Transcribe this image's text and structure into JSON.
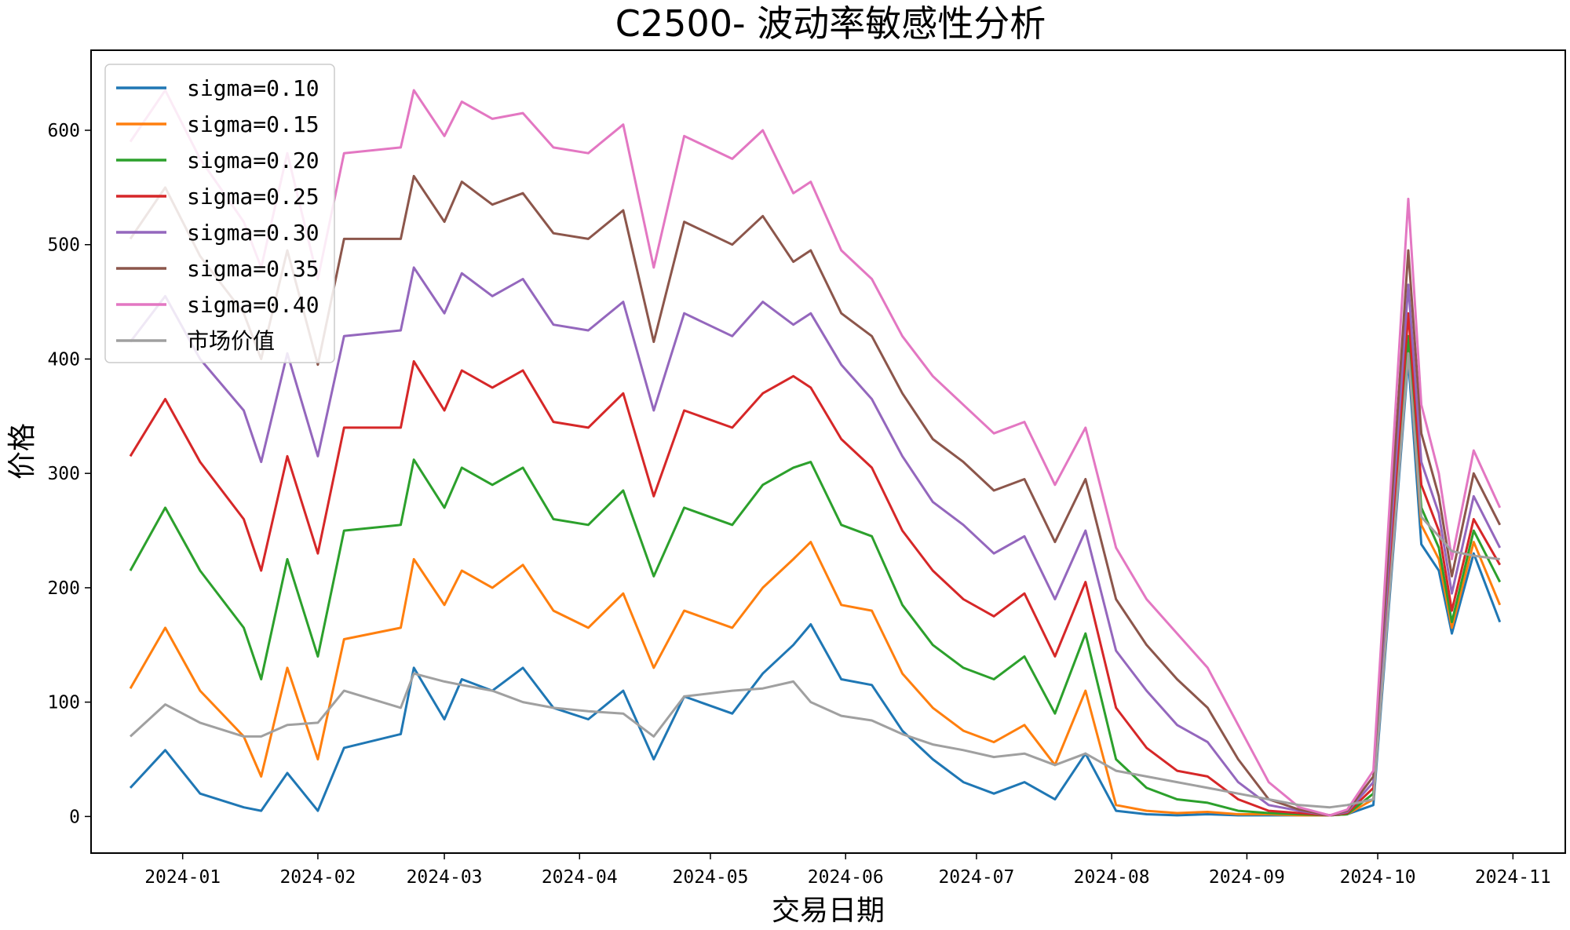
{
  "chart_data": {
    "type": "line",
    "title": "C2500- 波动率敏感性分析",
    "xlabel": "交易日期",
    "ylabel": "价格",
    "x_ticks": [
      "2024-01",
      "2024-02",
      "2024-03",
      "2024-04",
      "2024-05",
      "2024-06",
      "2024-07",
      "2024-08",
      "2024-09",
      "2024-10",
      "2024-11"
    ],
    "y_ticks": [
      0,
      100,
      200,
      300,
      400,
      500,
      600
    ],
    "xlim": [
      "2023-12-11",
      "2024-11-13"
    ],
    "ylim": [
      -32,
      670
    ],
    "grid": false,
    "legend_position": "top-left",
    "x": [
      "2023-12-20",
      "2023-12-28",
      "2024-01-05",
      "2024-01-15",
      "2024-01-19",
      "2024-01-25",
      "2024-02-01",
      "2024-02-07",
      "2024-02-20",
      "2024-02-23",
      "2024-03-01",
      "2024-03-05",
      "2024-03-12",
      "2024-03-19",
      "2024-03-26",
      "2024-04-03",
      "2024-04-11",
      "2024-04-18",
      "2024-04-25",
      "2024-05-06",
      "2024-05-13",
      "2024-05-20",
      "2024-05-24",
      "2024-05-31",
      "2024-06-07",
      "2024-06-14",
      "2024-06-21",
      "2024-06-28",
      "2024-07-05",
      "2024-07-12",
      "2024-07-19",
      "2024-07-26",
      "2024-08-02",
      "2024-08-09",
      "2024-08-16",
      "2024-08-23",
      "2024-08-30",
      "2024-09-06",
      "2024-09-13",
      "2024-09-20",
      "2024-09-24",
      "2024-09-30",
      "2024-10-08",
      "2024-10-11",
      "2024-10-15",
      "2024-10-18",
      "2024-10-23",
      "2024-10-29"
    ],
    "series": [
      {
        "name": "sigma=0.10",
        "color": "#1f77b4",
        "values": [
          25,
          58,
          20,
          8,
          5,
          38,
          5,
          60,
          72,
          130,
          85,
          120,
          110,
          130,
          95,
          85,
          110,
          50,
          105,
          90,
          125,
          150,
          168,
          120,
          115,
          75,
          50,
          30,
          20,
          30,
          15,
          55,
          5,
          2,
          1,
          2,
          1,
          1,
          1,
          1,
          2,
          10,
          400,
          238,
          215,
          160,
          230,
          170
        ]
      },
      {
        "name": "sigma=0.15",
        "color": "#ff7f0e",
        "values": [
          112,
          165,
          110,
          70,
          35,
          130,
          50,
          155,
          165,
          225,
          185,
          215,
          200,
          220,
          180,
          165,
          195,
          130,
          180,
          165,
          200,
          225,
          240,
          185,
          180,
          125,
          95,
          75,
          65,
          80,
          45,
          110,
          10,
          5,
          3,
          4,
          2,
          2,
          1,
          1,
          2,
          15,
          410,
          255,
          225,
          165,
          240,
          185
        ]
      },
      {
        "name": "sigma=0.20",
        "color": "#2ca02c",
        "values": [
          215,
          270,
          215,
          165,
          120,
          225,
          140,
          250,
          255,
          312,
          270,
          305,
          290,
          305,
          260,
          255,
          285,
          210,
          270,
          255,
          290,
          305,
          310,
          255,
          245,
          185,
          150,
          130,
          120,
          140,
          90,
          160,
          50,
          25,
          15,
          12,
          5,
          3,
          2,
          1,
          2,
          20,
          420,
          270,
          235,
          170,
          250,
          205
        ]
      },
      {
        "name": "sigma=0.25",
        "color": "#d62728",
        "values": [
          315,
          365,
          310,
          260,
          215,
          315,
          230,
          340,
          340,
          398,
          355,
          390,
          375,
          390,
          345,
          340,
          370,
          280,
          355,
          340,
          370,
          385,
          375,
          330,
          305,
          250,
          215,
          190,
          175,
          195,
          140,
          205,
          95,
          60,
          40,
          35,
          15,
          5,
          3,
          1,
          3,
          25,
          440,
          290,
          250,
          180,
          260,
          220
        ]
      },
      {
        "name": "sigma=0.30",
        "color": "#9467bd",
        "values": [
          415,
          455,
          400,
          355,
          310,
          405,
          315,
          420,
          425,
          480,
          440,
          475,
          455,
          470,
          430,
          425,
          450,
          355,
          440,
          420,
          450,
          430,
          440,
          395,
          365,
          315,
          275,
          255,
          230,
          245,
          190,
          250,
          145,
          110,
          80,
          65,
          30,
          10,
          5,
          1,
          4,
          30,
          465,
          310,
          265,
          195,
          280,
          235
        ]
      },
      {
        "name": "sigma=0.35",
        "color": "#8c564b",
        "values": [
          505,
          550,
          490,
          440,
          400,
          495,
          395,
          505,
          505,
          560,
          520,
          555,
          535,
          545,
          510,
          505,
          530,
          415,
          520,
          500,
          525,
          485,
          495,
          440,
          420,
          370,
          330,
          310,
          285,
          295,
          240,
          295,
          190,
          150,
          120,
          95,
          50,
          15,
          6,
          1,
          5,
          35,
          495,
          335,
          280,
          210,
          300,
          255
        ]
      },
      {
        "name": "sigma=0.40",
        "color": "#e377c2",
        "values": [
          590,
          635,
          575,
          520,
          480,
          580,
          470,
          580,
          585,
          635,
          595,
          625,
          610,
          615,
          585,
          580,
          605,
          480,
          595,
          575,
          600,
          545,
          555,
          495,
          470,
          420,
          385,
          360,
          335,
          345,
          290,
          340,
          235,
          190,
          160,
          130,
          80,
          30,
          8,
          1,
          6,
          40,
          540,
          360,
          300,
          225,
          320,
          270
        ]
      },
      {
        "name": "市场价值",
        "color": "#a0a0a0",
        "values": [
          70,
          98,
          82,
          70,
          70,
          80,
          82,
          110,
          95,
          125,
          118,
          115,
          110,
          100,
          95,
          92,
          90,
          70,
          105,
          110,
          112,
          118,
          100,
          88,
          84,
          72,
          63,
          58,
          52,
          55,
          45,
          55,
          40,
          35,
          30,
          25,
          20,
          15,
          10,
          8,
          10,
          15,
          405,
          262,
          245,
          232,
          228,
          225
        ]
      }
    ]
  }
}
